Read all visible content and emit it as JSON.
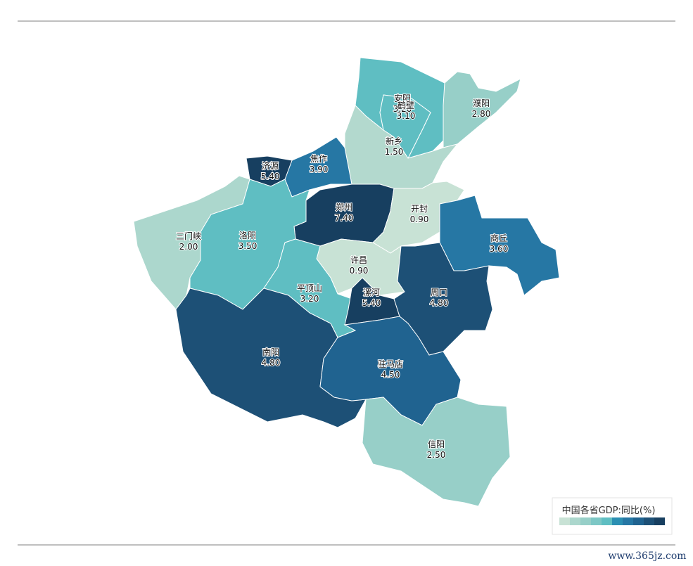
{
  "chart_data": {
    "type": "choropleth",
    "categories": [
      "安阳",
      "鹤壁",
      "濮阳",
      "新乡",
      "焦作",
      "济源",
      "郑州",
      "开封",
      "商丘",
      "三门峡",
      "洛阳",
      "许昌",
      "平顶山",
      "漯河",
      "周口",
      "南阳",
      "驻马店",
      "信阳"
    ],
    "values": [
      3.2,
      3.1,
      2.8,
      1.5,
      3.9,
      5.4,
      7.4,
      0.9,
      3.6,
      2.0,
      3.5,
      0.9,
      3.2,
      5.4,
      4.8,
      4.8,
      4.5,
      2.5
    ],
    "value_labels": [
      "3.20",
      "3.10",
      "2.80",
      "1.50",
      "3.90",
      "5.40",
      "7.40",
      "0.90",
      "3.60",
      "2.00",
      "3.50",
      "0.90",
      "3.20",
      "5.40",
      "4.80",
      "4.80",
      "4.50",
      "2.50"
    ],
    "colors": [
      "#5fbec2",
      "#5fbec2",
      "#97cfc8",
      "#b3d9ce",
      "#2677a4",
      "#173f60",
      "#173f60",
      "#c8e2d5",
      "#2677a4",
      "#acd7cd",
      "#5fbec2",
      "#c8e2d5",
      "#5fbec2",
      "#173f60",
      "#1d5076",
      "#1d5076",
      "#206390",
      "#97cfc8"
    ],
    "legend_title": "中国各省GDP:同比(%)",
    "legend_colors": [
      "#c8e2d5",
      "#acd7cd",
      "#97cfc8",
      "#7dc7c5",
      "#5fbec2",
      "#2b8fb2",
      "#2677a4",
      "#206390",
      "#1d5076",
      "#173f60"
    ],
    "watermark": "www.365jz.com"
  }
}
